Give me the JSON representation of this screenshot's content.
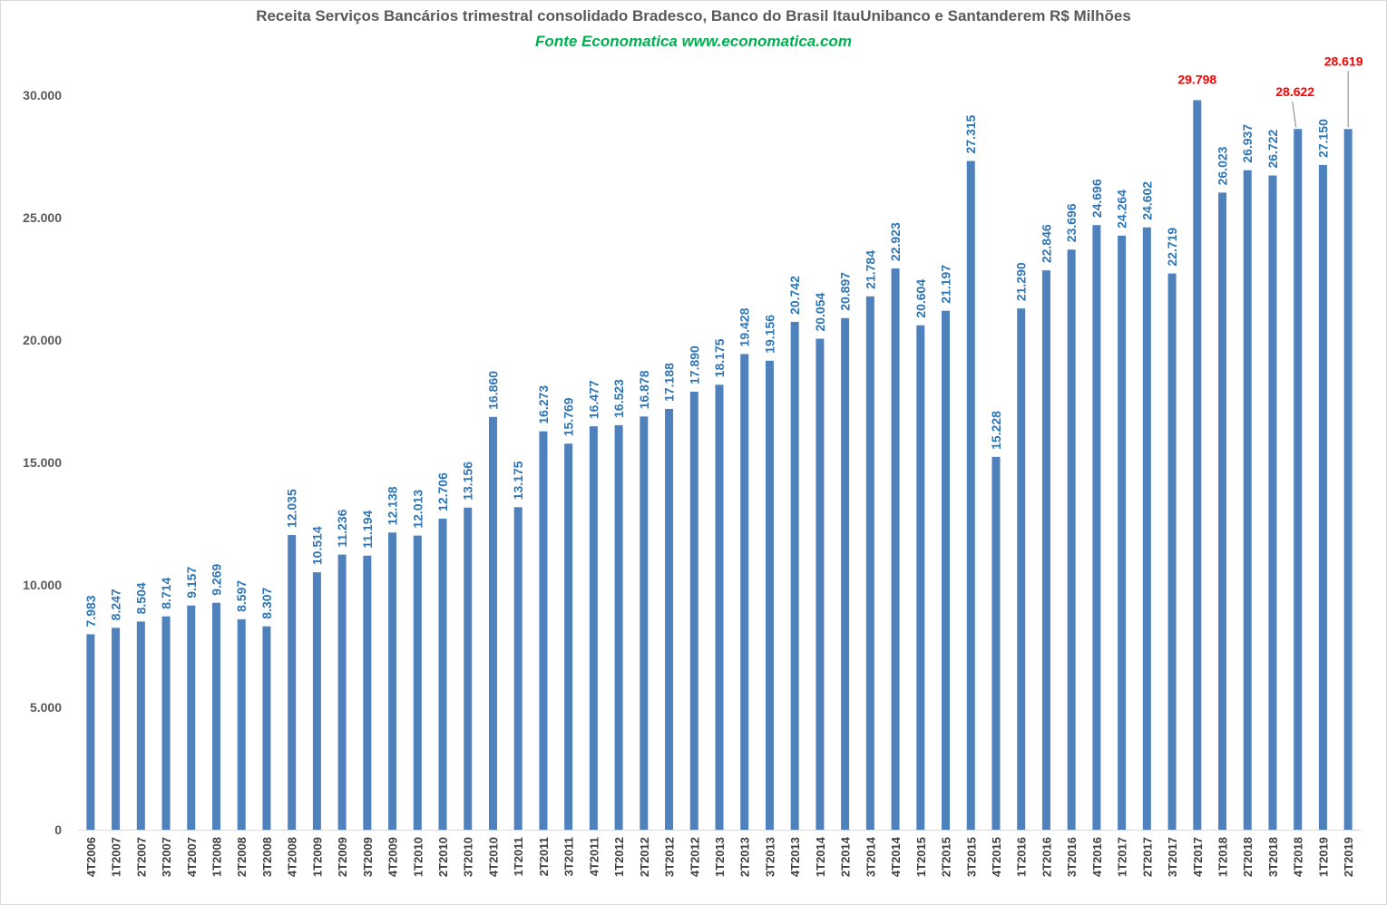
{
  "chart_data": {
    "type": "bar",
    "title": "Receita Serviços Bancários trimestral consolidado Bradesco, Banco do Brasil ItauUnibanco e Santanderem R$ Milhões",
    "subtitle": "Fonte Economatica www.economatica.com",
    "xlabel": "",
    "ylabel": "",
    "ylim": [
      0,
      30000
    ],
    "yticks": [
      0,
      5000,
      10000,
      15000,
      20000,
      25000,
      30000
    ],
    "ytick_labels": [
      "0",
      "5.000",
      "10.000",
      "15.000",
      "20.000",
      "25.000",
      "30.000"
    ],
    "grid": false,
    "legend": "none",
    "bar_color": "#4f81bd",
    "label_color": "#2e75b6",
    "highlight_color": "#ff0000",
    "categories": [
      "4T2006",
      "1T2007",
      "2T2007",
      "3T2007",
      "4T2007",
      "1T2008",
      "2T2008",
      "3T2008",
      "4T2008",
      "1T2009",
      "2T2009",
      "3T2009",
      "4T2009",
      "1T2010",
      "2T2010",
      "3T2010",
      "4T2010",
      "1T2011",
      "2T2011",
      "3T2011",
      "4T2011",
      "1T2012",
      "2T2012",
      "3T2012",
      "4T2012",
      "1T2013",
      "2T2013",
      "3T2013",
      "4T2013",
      "1T2014",
      "2T2014",
      "3T2014",
      "4T2014",
      "1T2015",
      "2T2015",
      "3T2015",
      "4T2015",
      "1T2016",
      "2T2016",
      "3T2016",
      "4T2016",
      "1T2017",
      "2T2017",
      "3T2017",
      "4T2017",
      "1T2018",
      "2T2018",
      "3T2018",
      "4T2018",
      "1T2019",
      "2T2019"
    ],
    "values": [
      7983,
      8247,
      8504,
      8714,
      9157,
      9269,
      8597,
      8307,
      12035,
      10514,
      11236,
      11194,
      12138,
      12013,
      12706,
      13156,
      16860,
      13175,
      16273,
      15769,
      16477,
      16523,
      16878,
      17188,
      17890,
      18175,
      19428,
      19156,
      20742,
      20054,
      20897,
      21784,
      22923,
      20604,
      21197,
      27315,
      15228,
      21290,
      22846,
      23696,
      24696,
      24264,
      24602,
      22719,
      29798,
      26023,
      26937,
      26722,
      28622,
      27150,
      28619
    ],
    "value_labels": [
      "7.983",
      "8.247",
      "8.504",
      "8.714",
      "9.157",
      "9.269",
      "8.597",
      "8.307",
      "12.035",
      "10.514",
      "11.236",
      "11.194",
      "12.138",
      "12.013",
      "12.706",
      "13.156",
      "16.860",
      "13.175",
      "16.273",
      "15.769",
      "16.477",
      "16.523",
      "16.878",
      "17.188",
      "17.890",
      "18.175",
      "19.428",
      "19.156",
      "20.742",
      "20.054",
      "20.897",
      "21.784",
      "22.923",
      "20.604",
      "21.197",
      "27.315",
      "15.228",
      "21.290",
      "22.846",
      "23.696",
      "24.696",
      "24.264",
      "24.602",
      "22.719",
      "29.798",
      "26.023",
      "26.937",
      "26.722",
      "28.622",
      "27.150",
      "28.619"
    ],
    "highlighted_labels": [
      "4T2017",
      "4T2018",
      "2T2019"
    ]
  }
}
